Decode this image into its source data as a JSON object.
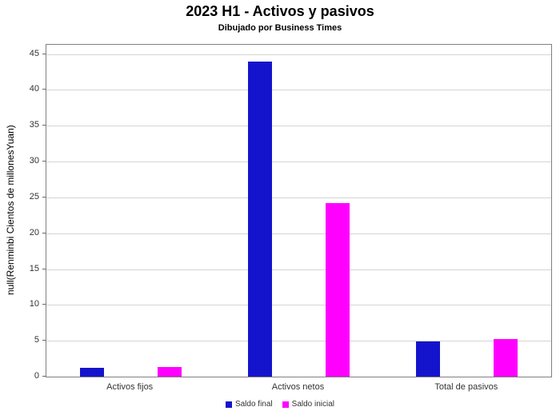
{
  "title": "2023 H1 - Activos y pasivos",
  "subtitle": "Dibujado por Business Times",
  "chart_data": {
    "type": "bar",
    "title": "2023 H1 - Activos y pasivos",
    "subtitle": "Dibujado por Business Times",
    "categories": [
      "Activos fijos",
      "Activos netos",
      "Total de pasivos"
    ],
    "series": [
      {
        "name": "Saldo final",
        "color": "#1414cd",
        "values": [
          1.2,
          44.0,
          4.9
        ]
      },
      {
        "name": "Saldo inicial",
        "color": "#ff00ff",
        "values": [
          1.3,
          24.2,
          5.2
        ]
      }
    ],
    "xlabel": "",
    "ylabel": "null(Renminbi Cientos de millonesYuan)",
    "ylim": [
      0,
      46.3
    ],
    "yticks": [
      0,
      5,
      10,
      15,
      20,
      25,
      30,
      35,
      40,
      45
    ],
    "grid": "horizontal",
    "legend_position": "bottom"
  }
}
